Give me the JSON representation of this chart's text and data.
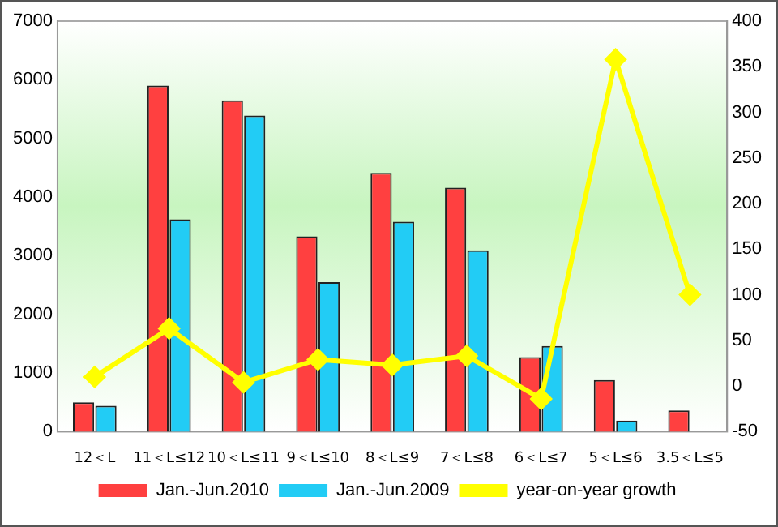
{
  "chart_data": {
    "type": "bar",
    "categories": [
      "12＜L",
      "11＜L≤12",
      "10＜L≤11",
      "9＜L≤10",
      "8＜L≤9",
      "7＜L≤8",
      "6＜L≤7",
      "5＜L≤6",
      "3.5＜L≤5"
    ],
    "series": [
      {
        "name": "Jan.-Jun.2010",
        "color": "#ff4040",
        "values": [
          500,
          5900,
          5650,
          3330,
          4410,
          4160,
          1270,
          880,
          360
        ]
      },
      {
        "name": "Jan.-Jun.2009",
        "color": "#22ccf5",
        "values": [
          440,
          3620,
          5390,
          2550,
          3580,
          3090,
          1460,
          190,
          0
        ]
      },
      {
        "name": "year-on-year growth",
        "type": "line",
        "axis": "y2",
        "color": "#ffff00",
        "marker": "diamond",
        "values": [
          10,
          63,
          4,
          29,
          23,
          33,
          -14,
          358,
          100
        ]
      }
    ],
    "ylim": [
      0,
      7000
    ],
    "yticks": [
      0,
      1000,
      2000,
      3000,
      4000,
      5000,
      6000,
      7000
    ],
    "y2lim": [
      -50,
      400
    ],
    "y2ticks": [
      -50,
      0,
      50,
      100,
      150,
      200,
      250,
      300,
      350,
      400
    ],
    "grid": false,
    "legend": "bottom"
  }
}
